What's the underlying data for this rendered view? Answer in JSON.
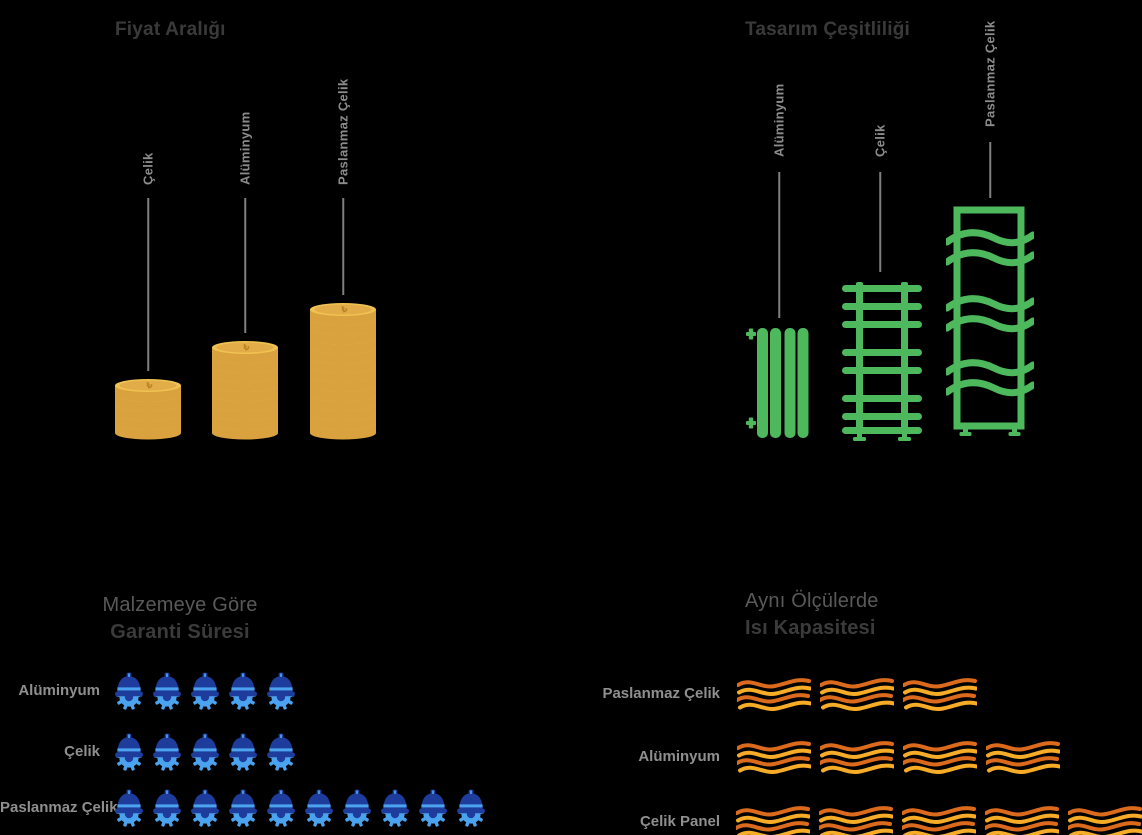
{
  "colors": {
    "background": "#000000",
    "section_title": "#3a3a3a",
    "heading_light": "#595959",
    "heading_dark": "#3b3b3b",
    "column_label": "#8c8c8c",
    "row_label": "#8f8f8f",
    "leader_line": "#7f7f7f",
    "coin_body": "#D9A23E",
    "coin_rim": "#EFC251",
    "coin_face": "#E2AC48",
    "coin_symbol": "#B98426",
    "radiator_green": "#4EB85C",
    "helmet_navy": "#1E3C9B",
    "gear_blue": "#4BA3F0",
    "wave_orange": "#DB6A1C",
    "wave_amber": "#F7AC28"
  },
  "panels": {
    "price": {
      "title": "Fiyat Aralığı",
      "coin_symbol": "₺",
      "items": [
        {
          "label": "Çelik",
          "coins": 5
        },
        {
          "label": "Alüminyum",
          "coins": 9
        },
        {
          "label": "Paslanmaz Çelik",
          "coins": 13
        }
      ]
    },
    "design": {
      "title": "Tasarım Çeşitliliği",
      "items": [
        {
          "label": "Alüminyum",
          "radiator": "panel-radiator"
        },
        {
          "label": "Çelik",
          "radiator": "towel-rail-radiator"
        },
        {
          "label": "Paslanmaz Çelik",
          "radiator": "designer-wave-radiator"
        }
      ]
    },
    "warranty": {
      "title_line1": "Malzemeye Göre",
      "title_line2": "Garanti Süresi",
      "icon": "helmet-gear",
      "rows": [
        {
          "label": "Alüminyum",
          "count": 5
        },
        {
          "label": "Çelik",
          "count": 5
        },
        {
          "label": "Paslanmaz Çelik",
          "count": 10
        }
      ]
    },
    "heat": {
      "title_line1": "Aynı Ölçülerde",
      "title_line2": "Isı Kapasitesi",
      "icon": "heat-waves",
      "rows": [
        {
          "label": "Paslanmaz Çelik",
          "count": 3
        },
        {
          "label": "Alüminyum",
          "count": 4
        },
        {
          "label": "Çelik Panel",
          "count": 5
        }
      ]
    }
  },
  "chart_data": [
    {
      "type": "bar",
      "title": "Fiyat Aralığı",
      "categories": [
        "Çelik",
        "Alüminyum",
        "Paslanmaz Çelik"
      ],
      "values": [
        5,
        9,
        13
      ],
      "ylabel": "coin count (relative price, coin-stack pictogram)",
      "grid": false,
      "legend_position": "none"
    },
    {
      "type": "bar",
      "title": "Tasarım Çeşitliliği",
      "categories": [
        "Alüminyum",
        "Çelik",
        "Paslanmaz Çelik"
      ],
      "values": [
        1,
        2,
        3
      ],
      "ylabel": "relative design variety (radiator pictogram height rank)",
      "grid": false,
      "legend_position": "none"
    },
    {
      "type": "bar",
      "title": "Malzemeye Göre Garanti Süresi",
      "categories": [
        "Alüminyum",
        "Çelik",
        "Paslanmaz Çelik"
      ],
      "values": [
        5,
        5,
        10
      ],
      "ylabel": "helmet-gear icon count (warranty period)",
      "grid": false,
      "legend_position": "none"
    },
    {
      "type": "bar",
      "title": "Aynı Ölçülerde Isı Kapasitesi",
      "categories": [
        "Paslanmaz Çelik",
        "Alüminyum",
        "Çelik Panel"
      ],
      "values": [
        3,
        4,
        5
      ],
      "ylabel": "heat-wave icon count (heat capacity)",
      "grid": false,
      "legend_position": "none"
    }
  ]
}
